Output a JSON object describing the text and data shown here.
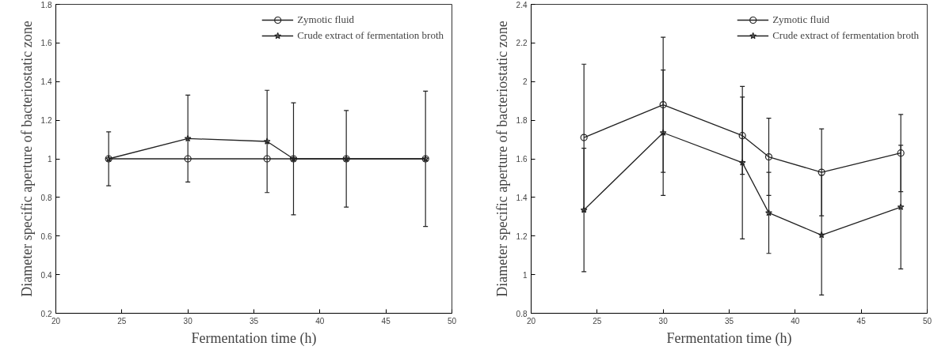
{
  "chart_data": [
    {
      "type": "line",
      "xlabel": "Fermentation time (h)",
      "ylabel": "Diameter specific aperture of bacteriostatic zone",
      "x": [
        24,
        30,
        36,
        38,
        42,
        48
      ],
      "xlim": [
        20,
        50
      ],
      "xticks": [
        20,
        25,
        30,
        35,
        40,
        45,
        50
      ],
      "ylim": [
        0.2,
        1.8
      ],
      "yticks": [
        0.2,
        0.4,
        0.6,
        0.8,
        1,
        1.2,
        1.4,
        1.6,
        1.8
      ],
      "grid": false,
      "legend": "top right",
      "series": [
        {
          "name": "Zymotic fluid",
          "color": "#222222",
          "marker": "circle",
          "values": [
            1,
            1,
            1,
            1,
            1,
            1
          ]
        },
        {
          "name": "Crude extract of fermentation broth",
          "color": "#222222",
          "marker": "star",
          "values": [
            1,
            1.105,
            1.09,
            1,
            1,
            1
          ],
          "errors": [
            0.14,
            0.225,
            0.265,
            0.29,
            0.25,
            0.35
          ]
        }
      ]
    },
    {
      "type": "line",
      "xlabel": "Fermentation time (h)",
      "ylabel": "Diameter specific aperture of bacteriostatic zone",
      "x": [
        24,
        30,
        36,
        38,
        42,
        48
      ],
      "xlim": [
        20,
        50
      ],
      "xticks": [
        20,
        25,
        30,
        35,
        40,
        45,
        50
      ],
      "ylim": [
        0.8,
        2.4
      ],
      "yticks": [
        0.8,
        1,
        1.2,
        1.4,
        1.6,
        1.8,
        2,
        2.2,
        2.4
      ],
      "grid": false,
      "legend": "top right",
      "series": [
        {
          "name": "Zymotic fluid",
          "color": "#222222",
          "marker": "circle",
          "values": [
            1.71,
            1.88,
            1.72,
            1.61,
            1.53,
            1.63
          ],
          "errors": [
            0.38,
            0.35,
            0.2,
            0.2,
            0.225,
            0.2
          ]
        },
        {
          "name": "Crude extract of fermentation broth",
          "color": "#222222",
          "marker": "star",
          "values": [
            1.335,
            1.735,
            1.58,
            1.32,
            1.205,
            1.35
          ],
          "errors": [
            0.32,
            0.325,
            0.395,
            0.21,
            0.31,
            0.32
          ]
        }
      ]
    }
  ]
}
